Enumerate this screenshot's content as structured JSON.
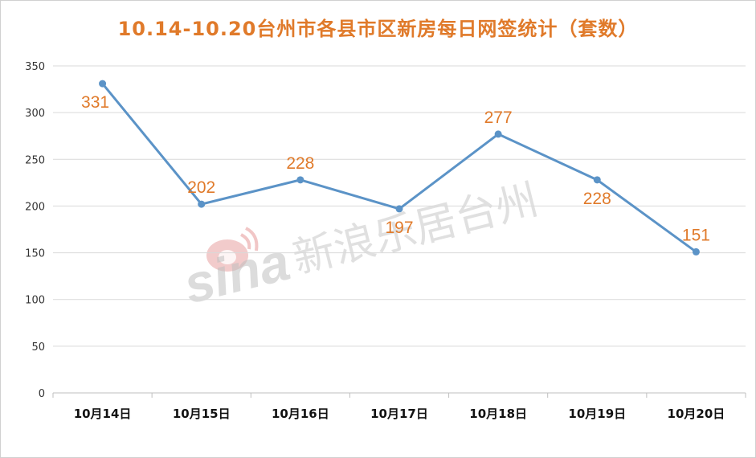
{
  "chart_data": {
    "type": "line",
    "title": "10.14-10.20台州市各县市区新房每日网签统计（套数）",
    "categories": [
      "10月14日",
      "10月15日",
      "10月16日",
      "10月17日",
      "10月18日",
      "10月19日",
      "10月20日"
    ],
    "series": [
      {
        "values": [
          331,
          202,
          228,
          197,
          277,
          228,
          151
        ]
      }
    ],
    "ylim": [
      0,
      350
    ],
    "yticks": [
      0,
      50,
      100,
      150,
      200,
      250,
      300,
      350
    ],
    "grid": true,
    "data_labels": true,
    "colors": {
      "line": "#5b93c7",
      "labels": "#e07a2a",
      "title": "#e07a2a",
      "grid": "#d9d9d9"
    }
  },
  "watermark": {
    "brand": "sina",
    "text": "新浪乐居台州"
  }
}
